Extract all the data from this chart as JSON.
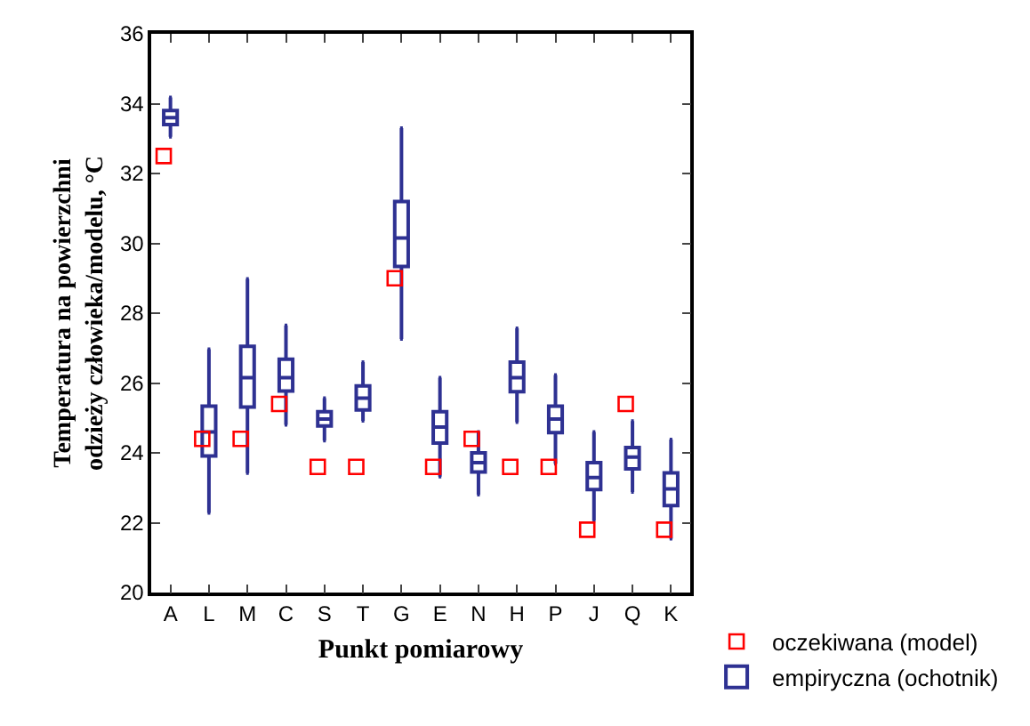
{
  "chart_data": {
    "type": "box",
    "xlabel": "Punkt pomiarowy",
    "ylabel": "Temperatura na powierzchni\nodzieży człowieka/modelu, °C",
    "categories": [
      "A",
      "L",
      "M",
      "C",
      "S",
      "T",
      "G",
      "E",
      "N",
      "H",
      "P",
      "J",
      "Q",
      "K"
    ],
    "ylim": [
      20,
      36
    ],
    "yticks": [
      20,
      22,
      24,
      26,
      28,
      30,
      32,
      34,
      36
    ],
    "legend": "bottom right",
    "series": [
      {
        "name": "oczekiwana (model)",
        "type": "scatter",
        "marker": "square",
        "color": "#ff0000",
        "values": [
          32.5,
          24.4,
          24.4,
          25.4,
          23.6,
          23.6,
          29.0,
          23.6,
          24.4,
          23.6,
          23.6,
          21.8,
          25.4,
          21.8
        ]
      },
      {
        "name": "empiryczna (ochotnik)",
        "type": "box",
        "color": "#2e3192",
        "boxes": [
          {
            "low": 33.05,
            "q1": 33.4,
            "median": 33.6,
            "q3": 33.8,
            "high": 34.18
          },
          {
            "low": 22.28,
            "q1": 23.91,
            "median": 24.6,
            "q3": 25.34,
            "high": 26.97
          },
          {
            "low": 23.42,
            "q1": 25.31,
            "median": 26.15,
            "q3": 27.05,
            "high": 28.98
          },
          {
            "low": 24.8,
            "q1": 25.77,
            "median": 26.15,
            "q3": 26.68,
            "high": 27.65
          },
          {
            "low": 24.35,
            "q1": 24.77,
            "median": 24.97,
            "q3": 25.18,
            "high": 25.57
          },
          {
            "low": 24.92,
            "q1": 25.23,
            "median": 25.57,
            "q3": 25.92,
            "high": 26.6
          },
          {
            "low": 27.26,
            "q1": 29.34,
            "median": 30.15,
            "q3": 31.2,
            "high": 33.3
          },
          {
            "low": 23.32,
            "q1": 24.28,
            "median": 24.74,
            "q3": 25.18,
            "high": 26.15
          },
          {
            "low": 22.8,
            "q1": 23.45,
            "median": 23.72,
            "q3": 24.0,
            "high": 24.6
          },
          {
            "low": 24.88,
            "q1": 25.75,
            "median": 26.15,
            "q3": 26.6,
            "high": 27.57
          },
          {
            "low": 23.69,
            "q1": 24.58,
            "median": 24.97,
            "q3": 25.34,
            "high": 26.23
          },
          {
            "low": 22.06,
            "q1": 22.95,
            "median": 23.29,
            "q3": 23.72,
            "high": 24.6
          },
          {
            "low": 22.88,
            "q1": 23.54,
            "median": 23.88,
            "q3": 24.15,
            "high": 24.91
          },
          {
            "low": 21.54,
            "q1": 22.49,
            "median": 22.97,
            "q3": 23.43,
            "high": 24.38
          }
        ]
      }
    ]
  }
}
